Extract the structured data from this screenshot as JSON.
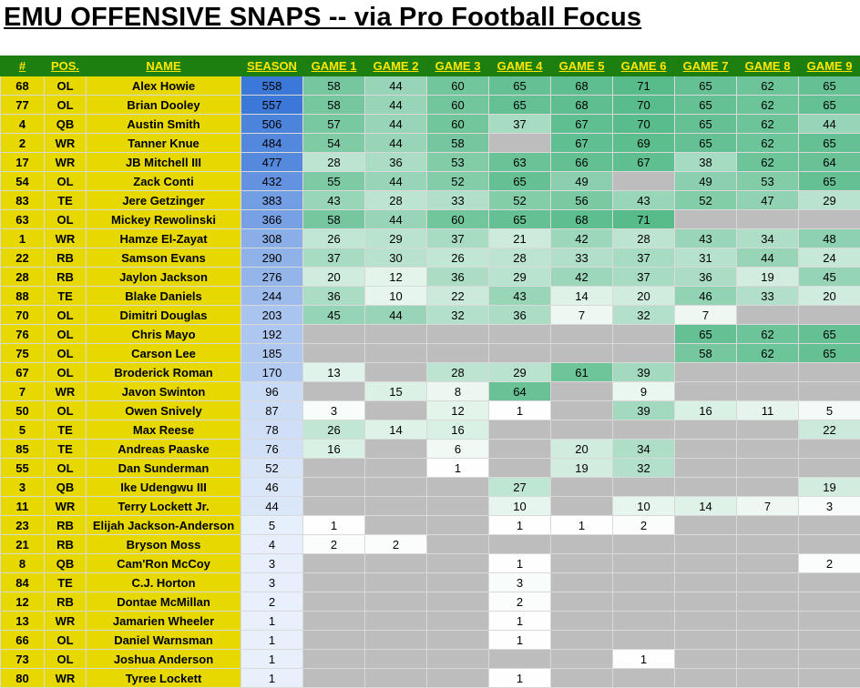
{
  "title": "EMU OFFENSIVE SNAPS -- via Pro Football Focus",
  "headers": [
    "#",
    "POS.",
    "NAME",
    "SEASON",
    "GAME 1",
    "GAME 2",
    "GAME 3",
    "GAME 4",
    "GAME 5",
    "GAME 6",
    "GAME 7",
    "GAME 8",
    "GAME 9"
  ],
  "max_game": 71,
  "max_season": 558,
  "players": [
    {
      "num": "68",
      "pos": "OL",
      "name": "Alex Howie",
      "season": 558,
      "games": [
        58,
        44,
        60,
        65,
        68,
        71,
        65,
        62,
        65
      ]
    },
    {
      "num": "77",
      "pos": "OL",
      "name": "Brian Dooley",
      "season": 557,
      "games": [
        58,
        44,
        60,
        65,
        68,
        70,
        65,
        62,
        65
      ]
    },
    {
      "num": "4",
      "pos": "QB",
      "name": "Austin Smith",
      "season": 506,
      "games": [
        57,
        44,
        60,
        37,
        67,
        70,
        65,
        62,
        44
      ]
    },
    {
      "num": "2",
      "pos": "WR",
      "name": "Tanner Knue",
      "season": 484,
      "games": [
        54,
        44,
        58,
        null,
        67,
        69,
        65,
        62,
        65
      ]
    },
    {
      "num": "17",
      "pos": "WR",
      "name": "JB Mitchell III",
      "season": 477,
      "games": [
        28,
        36,
        53,
        63,
        66,
        67,
        38,
        62,
        64
      ]
    },
    {
      "num": "54",
      "pos": "OL",
      "name": "Zack Conti",
      "season": 432,
      "games": [
        55,
        44,
        52,
        65,
        49,
        null,
        49,
        53,
        65
      ]
    },
    {
      "num": "83",
      "pos": "TE",
      "name": "Jere Getzinger",
      "season": 383,
      "games": [
        43,
        28,
        33,
        52,
        56,
        43,
        52,
        47,
        29
      ]
    },
    {
      "num": "63",
      "pos": "OL",
      "name": "Mickey Rewolinski",
      "season": 366,
      "games": [
        58,
        44,
        60,
        65,
        68,
        71,
        null,
        null,
        null
      ]
    },
    {
      "num": "1",
      "pos": "WR",
      "name": "Hamze El-Zayat",
      "season": 308,
      "games": [
        26,
        29,
        37,
        21,
        42,
        28,
        43,
        34,
        48
      ]
    },
    {
      "num": "22",
      "pos": "RB",
      "name": "Samson Evans",
      "season": 290,
      "games": [
        37,
        30,
        26,
        28,
        33,
        37,
        31,
        44,
        24
      ]
    },
    {
      "num": "28",
      "pos": "RB",
      "name": "Jaylon Jackson",
      "season": 276,
      "games": [
        20,
        12,
        36,
        29,
        42,
        37,
        36,
        19,
        45
      ]
    },
    {
      "num": "88",
      "pos": "TE",
      "name": "Blake Daniels",
      "season": 244,
      "games": [
        36,
        10,
        22,
        43,
        14,
        20,
        46,
        33,
        20
      ]
    },
    {
      "num": "70",
      "pos": "OL",
      "name": "Dimitri Douglas",
      "season": 203,
      "games": [
        45,
        44,
        32,
        36,
        7,
        32,
        7,
        null,
        null
      ]
    },
    {
      "num": "76",
      "pos": "OL",
      "name": "Chris Mayo",
      "season": 192,
      "games": [
        null,
        null,
        null,
        null,
        null,
        null,
        65,
        62,
        65
      ]
    },
    {
      "num": "75",
      "pos": "OL",
      "name": "Carson Lee",
      "season": 185,
      "games": [
        null,
        null,
        null,
        null,
        null,
        null,
        58,
        62,
        65
      ]
    },
    {
      "num": "67",
      "pos": "OL",
      "name": "Broderick Roman",
      "season": 170,
      "games": [
        13,
        null,
        28,
        29,
        61,
        39,
        null,
        null,
        null
      ]
    },
    {
      "num": "7",
      "pos": "WR",
      "name": "Javon Swinton",
      "season": 96,
      "games": [
        null,
        15,
        8,
        64,
        null,
        9,
        null,
        null,
        null
      ]
    },
    {
      "num": "50",
      "pos": "OL",
      "name": "Owen Snively",
      "season": 87,
      "games": [
        3,
        null,
        12,
        1,
        null,
        39,
        16,
        11,
        5
      ]
    },
    {
      "num": "5",
      "pos": "TE",
      "name": "Max Reese",
      "season": 78,
      "games": [
        26,
        14,
        16,
        null,
        null,
        null,
        null,
        null,
        22
      ]
    },
    {
      "num": "85",
      "pos": "TE",
      "name": "Andreas Paaske",
      "season": 76,
      "games": [
        16,
        null,
        6,
        null,
        20,
        34,
        null,
        null,
        null
      ]
    },
    {
      "num": "55",
      "pos": "OL",
      "name": "Dan Sunderman",
      "season": 52,
      "games": [
        null,
        null,
        1,
        null,
        19,
        32,
        null,
        null,
        null
      ]
    },
    {
      "num": "3",
      "pos": "QB",
      "name": "Ike Udengwu III",
      "season": 46,
      "games": [
        null,
        null,
        null,
        27,
        null,
        null,
        null,
        null,
        19
      ]
    },
    {
      "num": "11",
      "pos": "WR",
      "name": "Terry Lockett Jr.",
      "season": 44,
      "games": [
        null,
        null,
        null,
        10,
        null,
        10,
        14,
        7,
        3
      ]
    },
    {
      "num": "23",
      "pos": "RB",
      "name": "Elijah Jackson-Anderson",
      "season": 5,
      "games": [
        1,
        null,
        null,
        1,
        1,
        2,
        null,
        null,
        null
      ]
    },
    {
      "num": "21",
      "pos": "RB",
      "name": "Bryson Moss",
      "season": 4,
      "games": [
        2,
        2,
        null,
        null,
        null,
        null,
        null,
        null,
        null
      ]
    },
    {
      "num": "8",
      "pos": "QB",
      "name": "Cam'Ron McCoy",
      "season": 3,
      "games": [
        null,
        null,
        null,
        1,
        null,
        null,
        null,
        null,
        2
      ]
    },
    {
      "num": "84",
      "pos": "TE",
      "name": "C.J. Horton",
      "season": 3,
      "games": [
        null,
        null,
        null,
        3,
        null,
        null,
        null,
        null,
        null
      ]
    },
    {
      "num": "12",
      "pos": "RB",
      "name": "Dontae McMillan",
      "season": 2,
      "games": [
        null,
        null,
        null,
        2,
        null,
        null,
        null,
        null,
        null
      ]
    },
    {
      "num": "13",
      "pos": "WR",
      "name": "Jamarien Wheeler",
      "season": 1,
      "games": [
        null,
        null,
        null,
        1,
        null,
        null,
        null,
        null,
        null
      ]
    },
    {
      "num": "66",
      "pos": "OL",
      "name": "Daniel Warnsman",
      "season": 1,
      "games": [
        null,
        null,
        null,
        1,
        null,
        null,
        null,
        null,
        null
      ]
    },
    {
      "num": "73",
      "pos": "OL",
      "name": "Joshua Anderson",
      "season": 1,
      "games": [
        null,
        null,
        null,
        null,
        null,
        1,
        null,
        null,
        null
      ]
    },
    {
      "num": "80",
      "pos": "WR",
      "name": "Tyree Lockett",
      "season": 1,
      "games": [
        null,
        null,
        null,
        1,
        null,
        null,
        null,
        null,
        null
      ]
    }
  ]
}
